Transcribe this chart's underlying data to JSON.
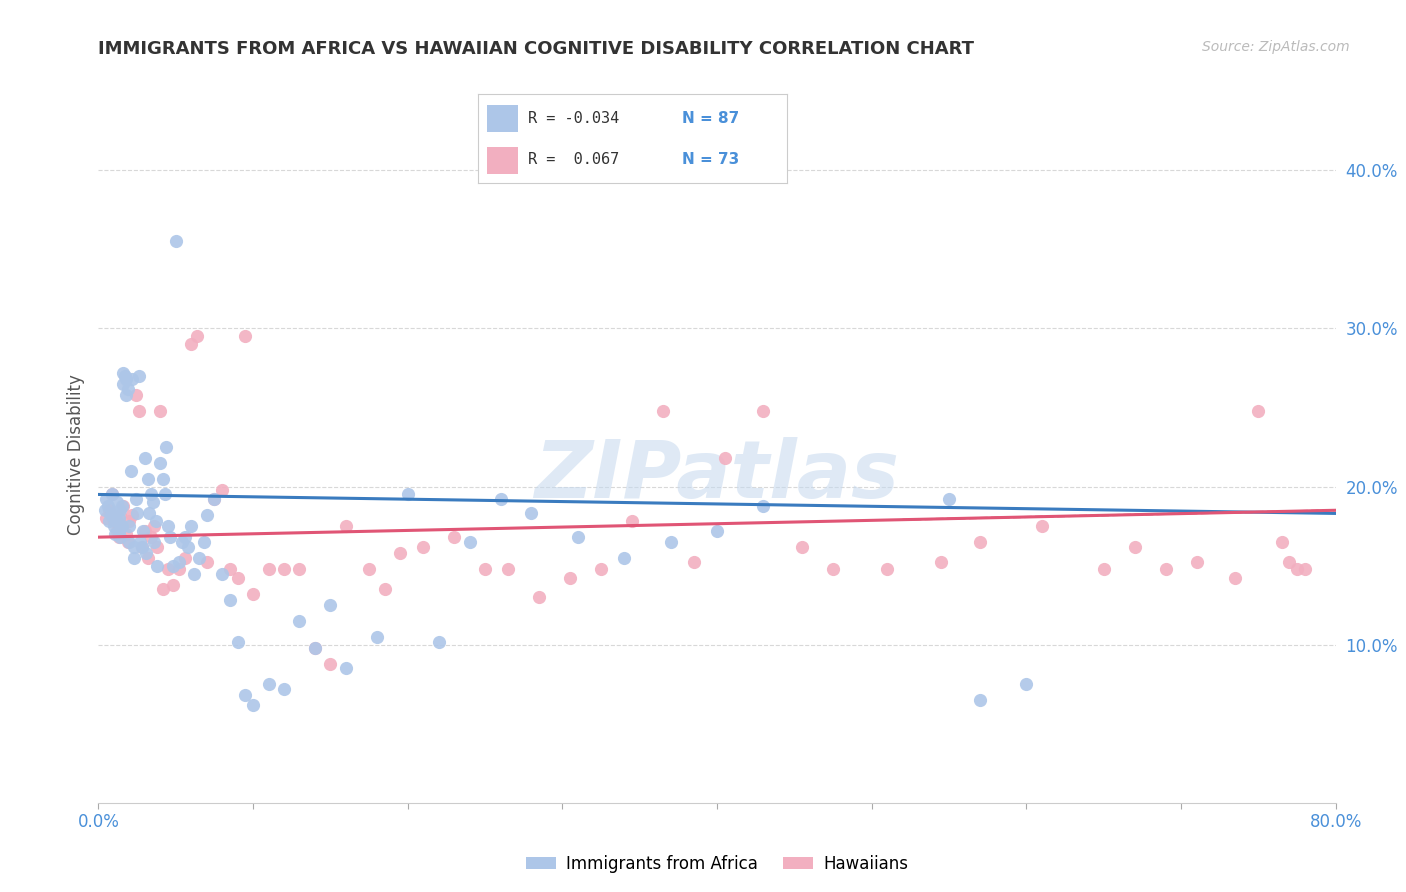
{
  "title": "IMMIGRANTS FROM AFRICA VS HAWAIIAN COGNITIVE DISABILITY CORRELATION CHART",
  "source": "Source: ZipAtlas.com",
  "ylabel": "Cognitive Disability",
  "xlim": [
    0.0,
    0.8
  ],
  "ylim": [
    0.0,
    0.44
  ],
  "yticks": [
    0.1,
    0.2,
    0.3,
    0.4
  ],
  "yticklabels": [
    "10.0%",
    "20.0%",
    "30.0%",
    "40.0%"
  ],
  "grid_color": "#d8d8d8",
  "background_color": "#ffffff",
  "blue_color": "#adc6e8",
  "pink_color": "#f2afc0",
  "blue_line_color": "#3a7bbf",
  "pink_line_color": "#e05575",
  "watermark": "ZIPatlas",
  "legend_label1": "Immigrants from Africa",
  "legend_label2": "Hawaiians",
  "blue_R": "-0.034",
  "blue_N": "87",
  "pink_R": "0.067",
  "pink_N": "73",
  "blue_scatter_x": [
    0.004,
    0.005,
    0.006,
    0.007,
    0.008,
    0.009,
    0.01,
    0.01,
    0.011,
    0.012,
    0.012,
    0.013,
    0.013,
    0.014,
    0.014,
    0.015,
    0.015,
    0.016,
    0.016,
    0.017,
    0.018,
    0.018,
    0.019,
    0.02,
    0.02,
    0.021,
    0.022,
    0.023,
    0.023,
    0.024,
    0.025,
    0.026,
    0.027,
    0.028,
    0.029,
    0.03,
    0.031,
    0.032,
    0.033,
    0.034,
    0.035,
    0.036,
    0.037,
    0.038,
    0.04,
    0.042,
    0.043,
    0.044,
    0.045,
    0.046,
    0.048,
    0.05,
    0.052,
    0.054,
    0.056,
    0.058,
    0.06,
    0.062,
    0.065,
    0.068,
    0.07,
    0.075,
    0.08,
    0.085,
    0.09,
    0.095,
    0.1,
    0.11,
    0.12,
    0.13,
    0.14,
    0.15,
    0.16,
    0.18,
    0.2,
    0.22,
    0.24,
    0.26,
    0.28,
    0.31,
    0.34,
    0.37,
    0.4,
    0.43,
    0.55,
    0.57,
    0.6
  ],
  "blue_scatter_y": [
    0.185,
    0.192,
    0.188,
    0.178,
    0.182,
    0.195,
    0.175,
    0.183,
    0.17,
    0.178,
    0.19,
    0.172,
    0.18,
    0.168,
    0.185,
    0.175,
    0.188,
    0.265,
    0.272,
    0.27,
    0.268,
    0.258,
    0.262,
    0.175,
    0.165,
    0.21,
    0.268,
    0.155,
    0.162,
    0.192,
    0.183,
    0.27,
    0.165,
    0.162,
    0.172,
    0.218,
    0.158,
    0.205,
    0.183,
    0.195,
    0.19,
    0.165,
    0.178,
    0.15,
    0.215,
    0.205,
    0.195,
    0.225,
    0.175,
    0.168,
    0.15,
    0.355,
    0.152,
    0.165,
    0.168,
    0.162,
    0.175,
    0.145,
    0.155,
    0.165,
    0.182,
    0.192,
    0.145,
    0.128,
    0.102,
    0.068,
    0.062,
    0.075,
    0.072,
    0.115,
    0.098,
    0.125,
    0.085,
    0.105,
    0.195,
    0.102,
    0.165,
    0.192,
    0.183,
    0.168,
    0.155,
    0.165,
    0.172,
    0.188,
    0.192,
    0.065,
    0.075
  ],
  "pink_scatter_x": [
    0.005,
    0.007,
    0.009,
    0.01,
    0.012,
    0.013,
    0.014,
    0.015,
    0.016,
    0.018,
    0.019,
    0.02,
    0.022,
    0.024,
    0.026,
    0.028,
    0.03,
    0.032,
    0.034,
    0.036,
    0.038,
    0.04,
    0.042,
    0.045,
    0.048,
    0.052,
    0.056,
    0.06,
    0.064,
    0.07,
    0.075,
    0.08,
    0.085,
    0.09,
    0.095,
    0.1,
    0.11,
    0.12,
    0.13,
    0.14,
    0.15,
    0.16,
    0.175,
    0.185,
    0.195,
    0.21,
    0.23,
    0.25,
    0.265,
    0.285,
    0.305,
    0.325,
    0.345,
    0.365,
    0.385,
    0.405,
    0.43,
    0.455,
    0.475,
    0.51,
    0.545,
    0.57,
    0.61,
    0.65,
    0.67,
    0.69,
    0.71,
    0.735,
    0.75,
    0.765,
    0.77,
    0.775,
    0.78
  ],
  "pink_scatter_y": [
    0.18,
    0.185,
    0.195,
    0.178,
    0.172,
    0.168,
    0.182,
    0.175,
    0.188,
    0.17,
    0.165,
    0.178,
    0.182,
    0.258,
    0.248,
    0.162,
    0.172,
    0.155,
    0.168,
    0.175,
    0.162,
    0.248,
    0.135,
    0.148,
    0.138,
    0.148,
    0.155,
    0.29,
    0.295,
    0.152,
    0.192,
    0.198,
    0.148,
    0.142,
    0.295,
    0.132,
    0.148,
    0.148,
    0.148,
    0.098,
    0.088,
    0.175,
    0.148,
    0.135,
    0.158,
    0.162,
    0.168,
    0.148,
    0.148,
    0.13,
    0.142,
    0.148,
    0.178,
    0.248,
    0.152,
    0.218,
    0.248,
    0.162,
    0.148,
    0.148,
    0.152,
    0.165,
    0.175,
    0.148,
    0.162,
    0.148,
    0.152,
    0.142,
    0.248,
    0.165,
    0.152,
    0.148,
    0.148
  ]
}
